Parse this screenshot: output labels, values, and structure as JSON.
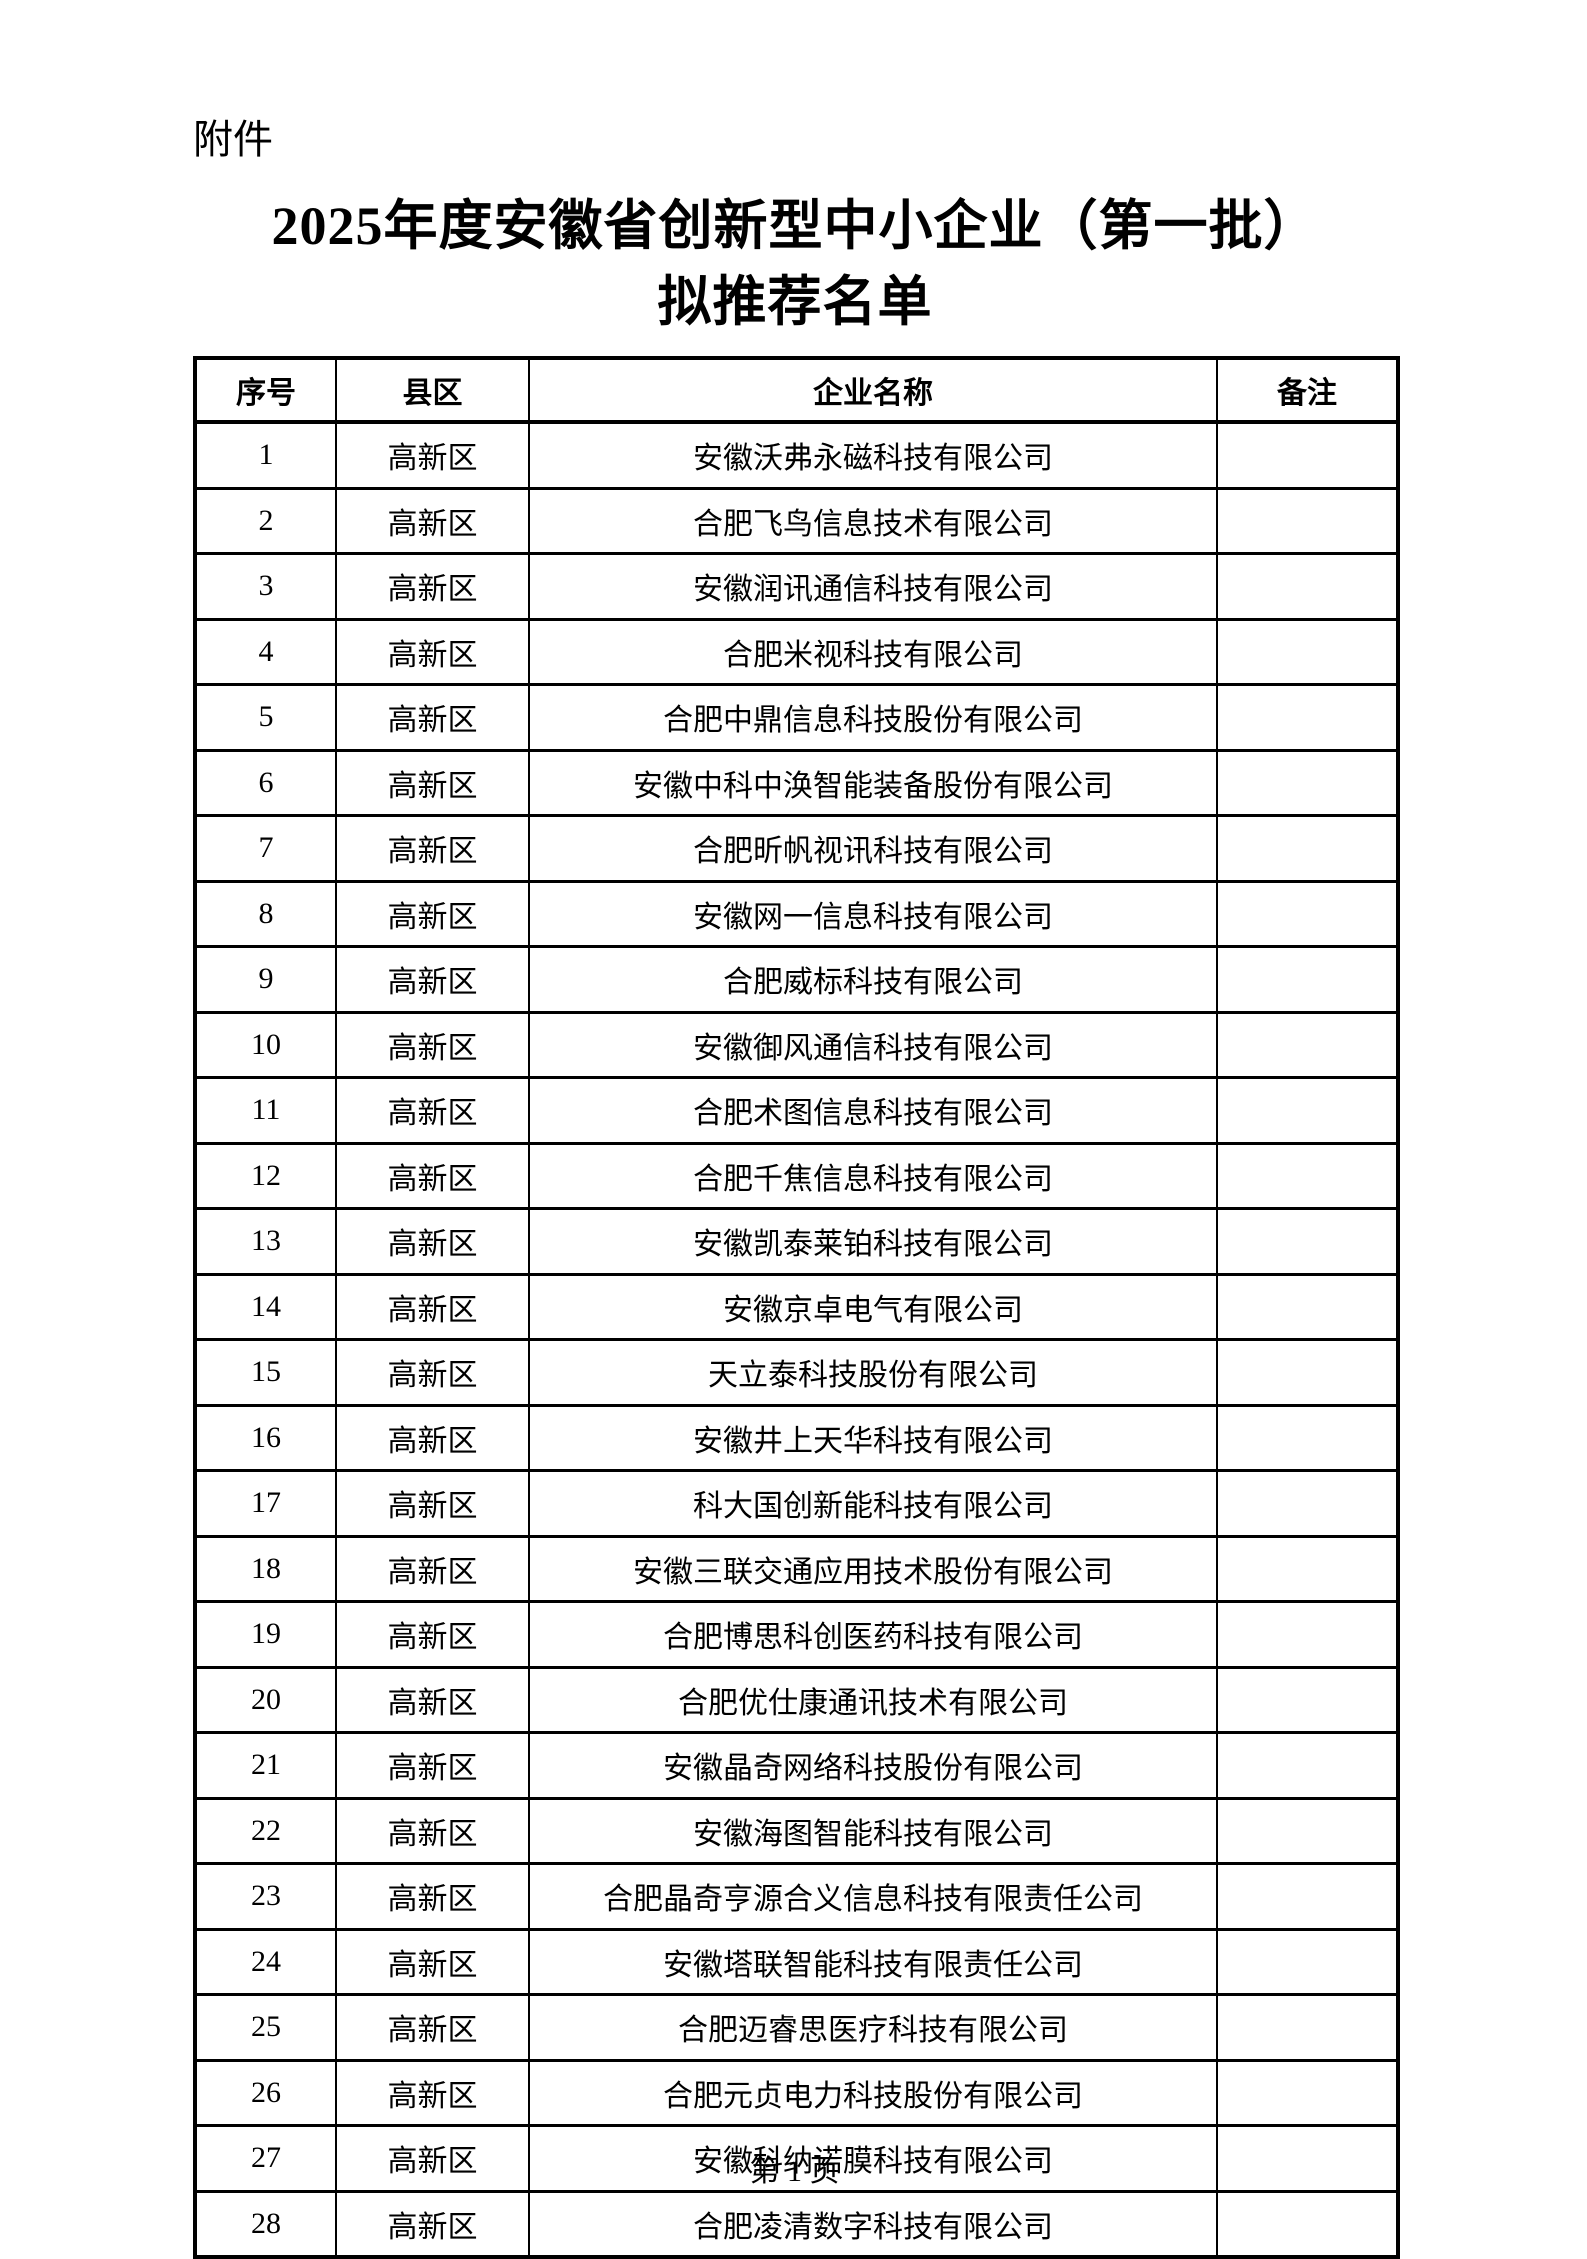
{
  "page": {
    "attachment_label": "附件",
    "title_line1": "2025年度安徽省创新型中小企业（第一批）",
    "title_line2": "拟推荐名单",
    "footer": "第 1 页"
  },
  "table": {
    "headers": [
      "序号",
      "县区",
      "企业名称",
      "备注"
    ],
    "rows": [
      {
        "no": "1",
        "district": "高新区",
        "company": "安徽沃弗永磁科技有限公司",
        "remark": ""
      },
      {
        "no": "2",
        "district": "高新区",
        "company": "合肥飞鸟信息技术有限公司",
        "remark": ""
      },
      {
        "no": "3",
        "district": "高新区",
        "company": "安徽润讯通信科技有限公司",
        "remark": ""
      },
      {
        "no": "4",
        "district": "高新区",
        "company": "合肥米视科技有限公司",
        "remark": ""
      },
      {
        "no": "5",
        "district": "高新区",
        "company": "合肥中鼎信息科技股份有限公司",
        "remark": ""
      },
      {
        "no": "6",
        "district": "高新区",
        "company": "安徽中科中涣智能装备股份有限公司",
        "remark": ""
      },
      {
        "no": "7",
        "district": "高新区",
        "company": "合肥昕帆视讯科技有限公司",
        "remark": ""
      },
      {
        "no": "8",
        "district": "高新区",
        "company": "安徽网一信息科技有限公司",
        "remark": ""
      },
      {
        "no": "9",
        "district": "高新区",
        "company": "合肥威标科技有限公司",
        "remark": ""
      },
      {
        "no": "10",
        "district": "高新区",
        "company": "安徽御风通信科技有限公司",
        "remark": ""
      },
      {
        "no": "11",
        "district": "高新区",
        "company": "合肥术图信息科技有限公司",
        "remark": ""
      },
      {
        "no": "12",
        "district": "高新区",
        "company": "合肥千焦信息科技有限公司",
        "remark": ""
      },
      {
        "no": "13",
        "district": "高新区",
        "company": "安徽凯泰莱铂科技有限公司",
        "remark": ""
      },
      {
        "no": "14",
        "district": "高新区",
        "company": "安徽京卓电气有限公司",
        "remark": ""
      },
      {
        "no": "15",
        "district": "高新区",
        "company": "天立泰科技股份有限公司",
        "remark": ""
      },
      {
        "no": "16",
        "district": "高新区",
        "company": "安徽井上天华科技有限公司",
        "remark": ""
      },
      {
        "no": "17",
        "district": "高新区",
        "company": "科大国创新能科技有限公司",
        "remark": ""
      },
      {
        "no": "18",
        "district": "高新区",
        "company": "安徽三联交通应用技术股份有限公司",
        "remark": ""
      },
      {
        "no": "19",
        "district": "高新区",
        "company": "合肥博思科创医药科技有限公司",
        "remark": ""
      },
      {
        "no": "20",
        "district": "高新区",
        "company": "合肥优仕康通讯技术有限公司",
        "remark": ""
      },
      {
        "no": "21",
        "district": "高新区",
        "company": "安徽晶奇网络科技股份有限公司",
        "remark": ""
      },
      {
        "no": "22",
        "district": "高新区",
        "company": "安徽海图智能科技有限公司",
        "remark": ""
      },
      {
        "no": "23",
        "district": "高新区",
        "company": "合肥晶奇亨源合义信息科技有限责任公司",
        "remark": ""
      },
      {
        "no": "24",
        "district": "高新区",
        "company": "安徽塔联智能科技有限责任公司",
        "remark": ""
      },
      {
        "no": "25",
        "district": "高新区",
        "company": "合肥迈睿思医疗科技有限公司",
        "remark": ""
      },
      {
        "no": "26",
        "district": "高新区",
        "company": "合肥元贞电力科技股份有限公司",
        "remark": ""
      },
      {
        "no": "27",
        "district": "高新区",
        "company": "安徽科纳诺膜科技有限公司",
        "remark": ""
      },
      {
        "no": "28",
        "district": "高新区",
        "company": "合肥凌清数字科技有限公司",
        "remark": ""
      }
    ]
  }
}
